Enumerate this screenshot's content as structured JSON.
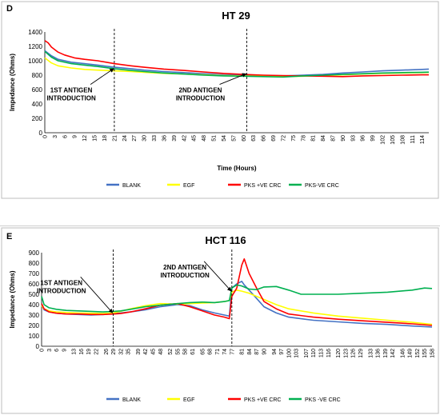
{
  "chart_data": [
    {
      "panel": "D",
      "type": "line",
      "title": "HT 29",
      "xlabel": "Time (Hours)",
      "ylabel": "Impedance (Ohms)",
      "xlim": [
        0,
        116
      ],
      "ylim": [
        0,
        1400
      ],
      "yticks": [
        0,
        200,
        400,
        600,
        800,
        1000,
        1200,
        1400
      ],
      "xticks": [
        0,
        3,
        6,
        9,
        12,
        15,
        18,
        21,
        24,
        27,
        30,
        33,
        36,
        39,
        42,
        45,
        48,
        51,
        54,
        57,
        60,
        63,
        66,
        69,
        72,
        75,
        78,
        81,
        84,
        87,
        90,
        93,
        96,
        99,
        102,
        105,
        108,
        111,
        114
      ],
      "grid": false,
      "legend": "bottom",
      "vlines": [
        21,
        61
      ],
      "annotations": [
        {
          "lines": [
            "1ST ANTIGEN",
            "INTRODUCTION"
          ],
          "arrow_to": [
            21,
            900
          ],
          "text_at": [
            8,
            560
          ]
        },
        {
          "lines": [
            "2ND ANTIGEN",
            "INTRODUCTION"
          ],
          "arrow_to": [
            61,
            830
          ],
          "text_at": [
            47,
            560
          ]
        }
      ],
      "series": [
        {
          "name": "BLANK",
          "color": "#4472c4",
          "x": [
            0,
            2,
            4,
            8,
            12,
            16,
            21,
            26,
            30,
            36,
            42,
            48,
            54,
            60,
            66,
            72,
            78,
            84,
            90,
            96,
            102,
            108,
            114,
            116
          ],
          "y": [
            1140,
            1070,
            1020,
            980,
            960,
            940,
            910,
            890,
            870,
            850,
            835,
            820,
            805,
            800,
            795,
            790,
            800,
            810,
            830,
            845,
            860,
            870,
            880,
            885
          ]
        },
        {
          "name": "EGF",
          "color": "#ffff00",
          "x": [
            0,
            2,
            4,
            8,
            12,
            16,
            21,
            26,
            30,
            36,
            42,
            48,
            54,
            60,
            66,
            72,
            78,
            84,
            90,
            96,
            102,
            108,
            114,
            116
          ],
          "y": [
            1040,
            970,
            930,
            900,
            880,
            870,
            860,
            850,
            840,
            825,
            815,
            805,
            795,
            790,
            785,
            780,
            785,
            795,
            805,
            815,
            825,
            830,
            835,
            838
          ]
        },
        {
          "name": "PKS +VE CRC",
          "color": "#ff0000",
          "x": [
            0,
            1,
            2,
            4,
            6,
            9,
            12,
            16,
            21,
            26,
            30,
            36,
            42,
            48,
            54,
            60,
            66,
            72,
            78,
            84,
            90,
            96,
            102,
            108,
            114,
            116
          ],
          "y": [
            1280,
            1250,
            1190,
            1120,
            1080,
            1040,
            1020,
            1000,
            960,
            930,
            910,
            885,
            865,
            845,
            825,
            810,
            800,
            795,
            790,
            785,
            780,
            790,
            795,
            800,
            805,
            805
          ]
        },
        {
          "name": "PKS-VE CRC",
          "color": "#00b050",
          "x": [
            0,
            2,
            4,
            8,
            12,
            16,
            21,
            26,
            30,
            36,
            42,
            48,
            54,
            60,
            66,
            72,
            78,
            84,
            90,
            96,
            102,
            108,
            114,
            116
          ],
          "y": [
            1130,
            1050,
            1000,
            960,
            940,
            920,
            890,
            865,
            850,
            830,
            815,
            800,
            790,
            785,
            780,
            775,
            790,
            800,
            810,
            820,
            830,
            835,
            840,
            842
          ]
        }
      ]
    },
    {
      "panel": "E",
      "type": "line",
      "title": "HCT 116",
      "xlabel": "",
      "ylabel": "Impedance (Ohms)",
      "xlim": [
        0,
        158
      ],
      "ylim": [
        0,
        900
      ],
      "yticks": [
        0,
        100,
        200,
        300,
        400,
        500,
        600,
        700,
        800,
        900
      ],
      "xticks": [
        0,
        3,
        6,
        9,
        13,
        16,
        19,
        22,
        26,
        29,
        32,
        35,
        39,
        42,
        45,
        48,
        52,
        55,
        58,
        61,
        65,
        68,
        71,
        74,
        77,
        81,
        84,
        87,
        90,
        94,
        97,
        100,
        103,
        107,
        110,
        113,
        116,
        120,
        123,
        126,
        129,
        133,
        136,
        139,
        142,
        146,
        149,
        152,
        155,
        158
      ],
      "grid": false,
      "legend": "bottom",
      "vlines": [
        29,
        77
      ],
      "annotations": [
        {
          "lines": [
            "1ST ANTIGEN",
            "INTRODUCTION"
          ],
          "arrow_to": [
            29,
            330
          ],
          "text_at": [
            8,
            590
          ]
        },
        {
          "lines": [
            "2ND ANTIGEN",
            "INTRODUCTION"
          ],
          "arrow_to": [
            77,
            540
          ],
          "text_at": [
            58,
            740
          ]
        }
      ],
      "series": [
        {
          "name": "BLANK",
          "color": "#4472c4",
          "x": [
            0,
            1,
            3,
            6,
            10,
            15,
            20,
            25,
            29,
            32,
            36,
            42,
            48,
            55,
            60,
            65,
            70,
            74,
            76,
            77,
            79,
            81,
            82,
            84,
            87,
            90,
            95,
            100,
            110,
            120,
            130,
            140,
            150,
            158
          ],
          "y": [
            400,
            350,
            330,
            318,
            310,
            305,
            300,
            305,
            315,
            320,
            330,
            350,
            380,
            400,
            390,
            350,
            320,
            300,
            290,
            560,
            600,
            625,
            590,
            540,
            460,
            380,
            320,
            280,
            250,
            235,
            220,
            210,
            195,
            185
          ]
        },
        {
          "name": "EGF",
          "color": "#ffff00",
          "x": [
            0,
            1,
            3,
            6,
            10,
            15,
            20,
            25,
            29,
            32,
            36,
            42,
            48,
            55,
            60,
            65,
            70,
            74,
            76,
            77,
            79,
            81,
            84,
            87,
            90,
            95,
            100,
            110,
            120,
            130,
            140,
            150,
            158
          ],
          "y": [
            390,
            360,
            340,
            330,
            325,
            320,
            318,
            315,
            320,
            335,
            360,
            390,
            410,
            405,
            410,
            415,
            420,
            430,
            440,
            520,
            540,
            530,
            510,
            480,
            450,
            400,
            360,
            320,
            290,
            270,
            250,
            230,
            210
          ]
        },
        {
          "name": "PKS +VE CRC",
          "color": "#ff0000",
          "x": [
            0,
            1,
            3,
            6,
            10,
            15,
            20,
            25,
            29,
            32,
            36,
            42,
            48,
            55,
            60,
            65,
            70,
            74,
            76,
            77,
            79,
            81,
            82,
            84,
            87,
            90,
            95,
            100,
            110,
            120,
            130,
            140,
            150,
            158
          ],
          "y": [
            410,
            360,
            330,
            318,
            310,
            310,
            305,
            305,
            310,
            315,
            330,
            360,
            395,
            410,
            380,
            340,
            300,
            280,
            265,
            480,
            560,
            780,
            840,
            700,
            560,
            430,
            360,
            310,
            280,
            260,
            245,
            230,
            215,
            200
          ]
        },
        {
          "name": "PKS -VE CRC",
          "color": "#00b050",
          "x": [
            0,
            1,
            3,
            6,
            10,
            15,
            20,
            25,
            29,
            32,
            36,
            42,
            48,
            55,
            60,
            65,
            70,
            74,
            76,
            77,
            79,
            81,
            84,
            87,
            90,
            95,
            100,
            105,
            110,
            120,
            130,
            140,
            150,
            155,
            158
          ],
          "y": [
            480,
            400,
            370,
            355,
            345,
            340,
            335,
            330,
            335,
            340,
            355,
            380,
            395,
            410,
            420,
            425,
            420,
            430,
            440,
            560,
            590,
            580,
            550,
            545,
            570,
            575,
            540,
            500,
            500,
            500,
            510,
            520,
            540,
            560,
            555
          ]
        }
      ]
    }
  ]
}
